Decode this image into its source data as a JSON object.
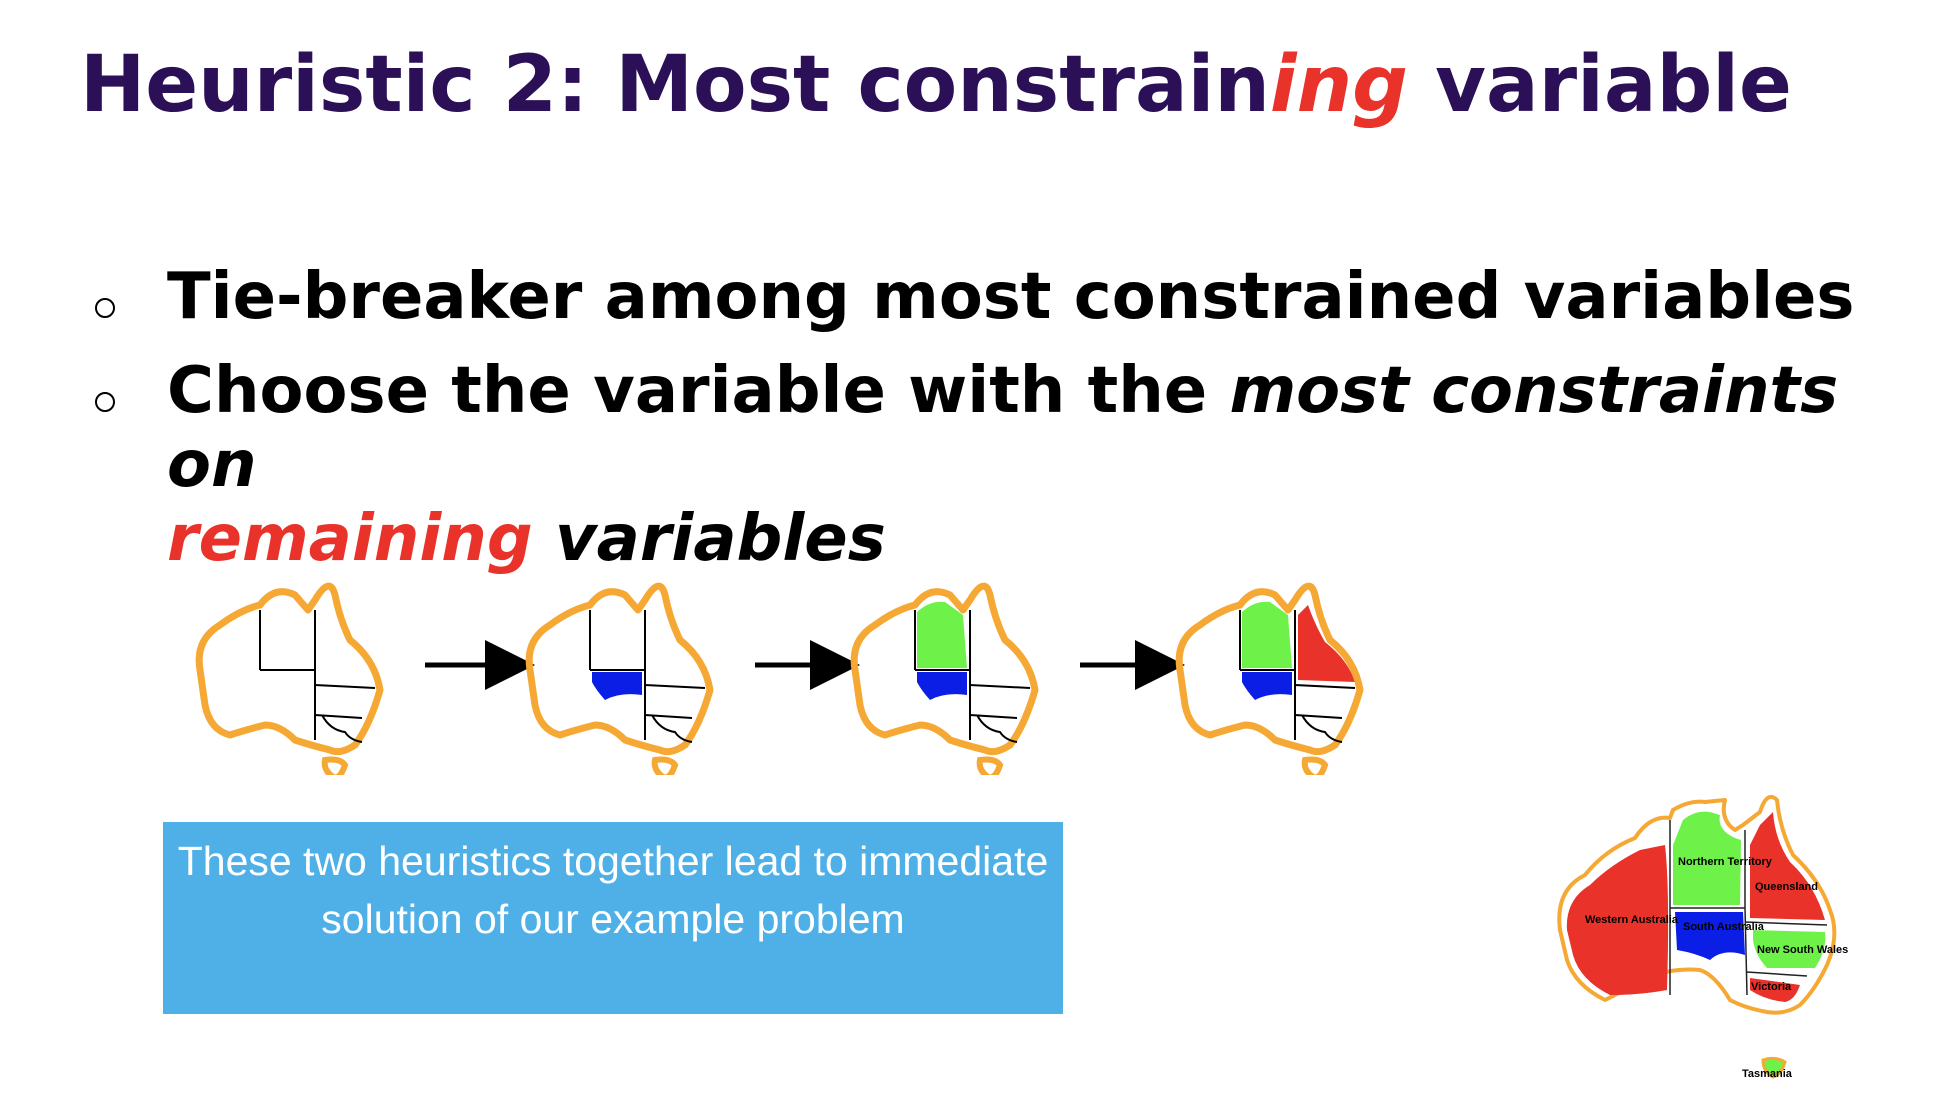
{
  "slide": {
    "title_part1": "Heuristic 2: Most constrain",
    "title_accent": "ing",
    "title_part2": " variable",
    "bullets": [
      {
        "text": "Tie-breaker among most constrained variables"
      },
      {
        "text": "Choose the variable with the ",
        "italic_text": "most constraints on",
        "italic_accent": "remaining",
        "italic_tail": " variables"
      }
    ],
    "callout": "These two heuristics together lead to immediate solution of our example problem"
  },
  "map": {
    "regions": {
      "wa": "Western Australia",
      "nt": "Northern Territory",
      "sa": "South Australia",
      "q": "Queensland",
      "nsw": "New South Wales",
      "v": "Victoria",
      "t": "Tasmania"
    },
    "colors": {
      "outline": "#f5a833",
      "red": "#e8322a",
      "green": "#6ef24a",
      "blue": "#0b1ee6"
    }
  }
}
